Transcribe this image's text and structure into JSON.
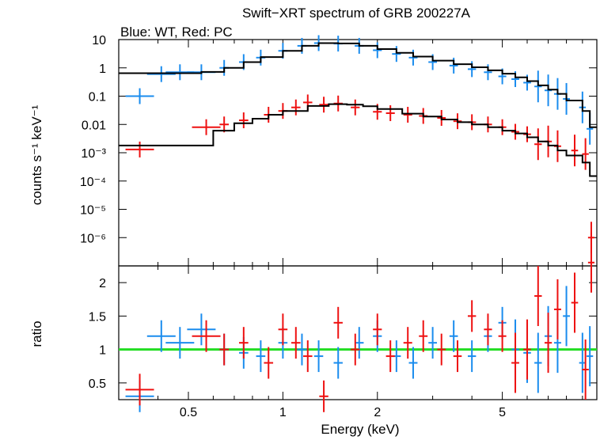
{
  "chart_data": [
    {
      "type": "scatter",
      "title": "Swift−XRT spectrum of GRB 200227A",
      "subtitle": "Blue: WT, Red: PC",
      "xlabel": "",
      "ylabel": "counts s⁻¹ keV⁻¹",
      "xscale": "log",
      "yscale": "log",
      "xlim": [
        0.3,
        10
      ],
      "ylim": [
        1e-07,
        10
      ],
      "x_ticks": [
        "0.5",
        "1",
        "2",
        "5"
      ],
      "y_ticks": [
        "10",
        "1",
        "0.1",
        "0.01",
        "10⁻³",
        "10⁻⁴",
        "10⁻⁵",
        "10⁻⁶"
      ],
      "series": [
        {
          "color": "#1a8cee",
          "x": [
            0.35,
            0.41,
            0.47,
            0.55,
            0.65,
            0.75,
            0.85,
            1.0,
            1.15,
            1.3,
            1.5,
            1.75,
            2.0,
            2.3,
            2.6,
            3.0,
            3.5,
            4.0,
            4.5,
            5.0,
            5.5,
            6.0,
            6.5,
            7.0,
            7.5,
            8.0,
            9.0,
            9.5
          ],
          "y": [
            0.1,
            0.6,
            0.7,
            0.7,
            1.0,
            1.6,
            2.3,
            4.0,
            6.0,
            7.5,
            7.2,
            6.0,
            4.2,
            3.1,
            2.3,
            1.6,
            1.2,
            0.9,
            0.7,
            0.5,
            0.4,
            0.3,
            0.22,
            0.16,
            0.12,
            0.08,
            0.04,
            0.007
          ]
        },
        {
          "color": "#ee1111",
          "x": [
            0.35,
            0.57,
            0.65,
            0.75,
            0.9,
            1.0,
            1.1,
            1.2,
            1.35,
            1.5,
            1.7,
            2.0,
            2.2,
            2.5,
            2.8,
            3.2,
            3.6,
            4.0,
            4.5,
            5.0,
            5.5,
            6.0,
            6.5,
            7.0,
            7.5,
            8.5,
            9.2,
            9.6
          ],
          "y": [
            0.0013,
            0.008,
            0.01,
            0.014,
            0.022,
            0.03,
            0.04,
            0.06,
            0.05,
            0.055,
            0.04,
            0.028,
            0.025,
            0.022,
            0.02,
            0.017,
            0.013,
            0.012,
            0.01,
            0.008,
            0.0055,
            0.0045,
            0.002,
            0.0025,
            0.0017,
            0.0012,
            0.0009,
            1e-06
          ]
        }
      ],
      "model": {
        "color": "#000000",
        "x": [
          0.3,
          0.45,
          0.55,
          0.65,
          0.75,
          0.85,
          1.0,
          1.15,
          1.3,
          1.5,
          1.75,
          2.0,
          2.3,
          2.6,
          3.0,
          3.5,
          4.0,
          4.5,
          5.0,
          5.5,
          6.0,
          6.5,
          7.0,
          7.5,
          8.0,
          9.0,
          9.5,
          10.0
        ],
        "y": [
          0.65,
          0.65,
          0.72,
          1.0,
          1.6,
          2.4,
          4.0,
          6.0,
          7.5,
          7.3,
          6.0,
          4.6,
          3.4,
          2.5,
          1.8,
          1.35,
          1.05,
          0.82,
          0.62,
          0.46,
          0.34,
          0.24,
          0.17,
          0.12,
          0.07,
          0.03,
          0.008,
          0.008
        ]
      },
      "model_pc": {
        "color": "#000000",
        "x": [
          0.3,
          0.55,
          0.6,
          0.7,
          0.8,
          0.9,
          1.0,
          1.2,
          1.4,
          1.6,
          1.8,
          2.0,
          2.4,
          2.8,
          3.2,
          3.6,
          4.0,
          4.5,
          5.0,
          5.5,
          6.0,
          6.5,
          7.0,
          7.5,
          8.0,
          9.0,
          9.5,
          10.0
        ],
        "y": [
          0.0018,
          0.0018,
          0.006,
          0.011,
          0.016,
          0.022,
          0.03,
          0.045,
          0.052,
          0.05,
          0.044,
          0.035,
          0.024,
          0.019,
          0.015,
          0.012,
          0.01,
          0.008,
          0.006,
          0.0048,
          0.0035,
          0.0025,
          0.0018,
          0.0012,
          0.0008,
          0.00045,
          0.00015,
          0.00015
        ]
      }
    },
    {
      "type": "scatter",
      "xlabel": "Energy (keV)",
      "ylabel": "ratio",
      "xscale": "log",
      "xlim": [
        0.3,
        10
      ],
      "ylim": [
        0.25,
        2.25
      ],
      "x_ticks": [
        "0.5",
        "1",
        "2",
        "5"
      ],
      "y_ticks": [
        "0.5",
        "1",
        "1.5",
        "2"
      ],
      "reference_line": {
        "y": 1,
        "color": "#22dd22"
      },
      "series": [
        {
          "color": "#1a8cee",
          "x": [
            0.35,
            0.41,
            0.47,
            0.55,
            0.65,
            0.75,
            0.85,
            1.0,
            1.15,
            1.3,
            1.5,
            1.75,
            2.0,
            2.3,
            2.6,
            3.0,
            3.5,
            4.0,
            4.5,
            5.0,
            5.5,
            6.0,
            6.5,
            7.0,
            7.5,
            8.0,
            9.0,
            9.5
          ],
          "y": [
            0.3,
            1.2,
            1.1,
            1.3,
            1.0,
            0.95,
            0.9,
            1.1,
            1.0,
            0.9,
            0.8,
            1.1,
            1.2,
            0.9,
            0.8,
            1.1,
            1.2,
            0.9,
            1.2,
            1.4,
            1.0,
            0.95,
            0.8,
            1.2,
            1.1,
            1.5,
            0.8,
            0.9
          ]
        },
        {
          "color": "#ee1111",
          "x": [
            0.35,
            0.57,
            0.65,
            0.75,
            0.9,
            1.0,
            1.1,
            1.2,
            1.35,
            1.5,
            1.7,
            2.0,
            2.2,
            2.5,
            2.8,
            3.2,
            3.6,
            4.0,
            4.5,
            5.0,
            5.5,
            6.0,
            6.5,
            7.0,
            7.5,
            8.5,
            9.2,
            9.6
          ],
          "y": [
            0.4,
            1.2,
            1.0,
            1.1,
            0.8,
            1.3,
            1.1,
            0.9,
            0.3,
            1.4,
            1.0,
            1.3,
            0.9,
            1.1,
            1.2,
            1.0,
            0.9,
            1.5,
            1.3,
            1.2,
            0.8,
            1.0,
            1.8,
            1.1,
            1.6,
            1.7,
            0.7,
            2.3
          ]
        }
      ]
    }
  ]
}
